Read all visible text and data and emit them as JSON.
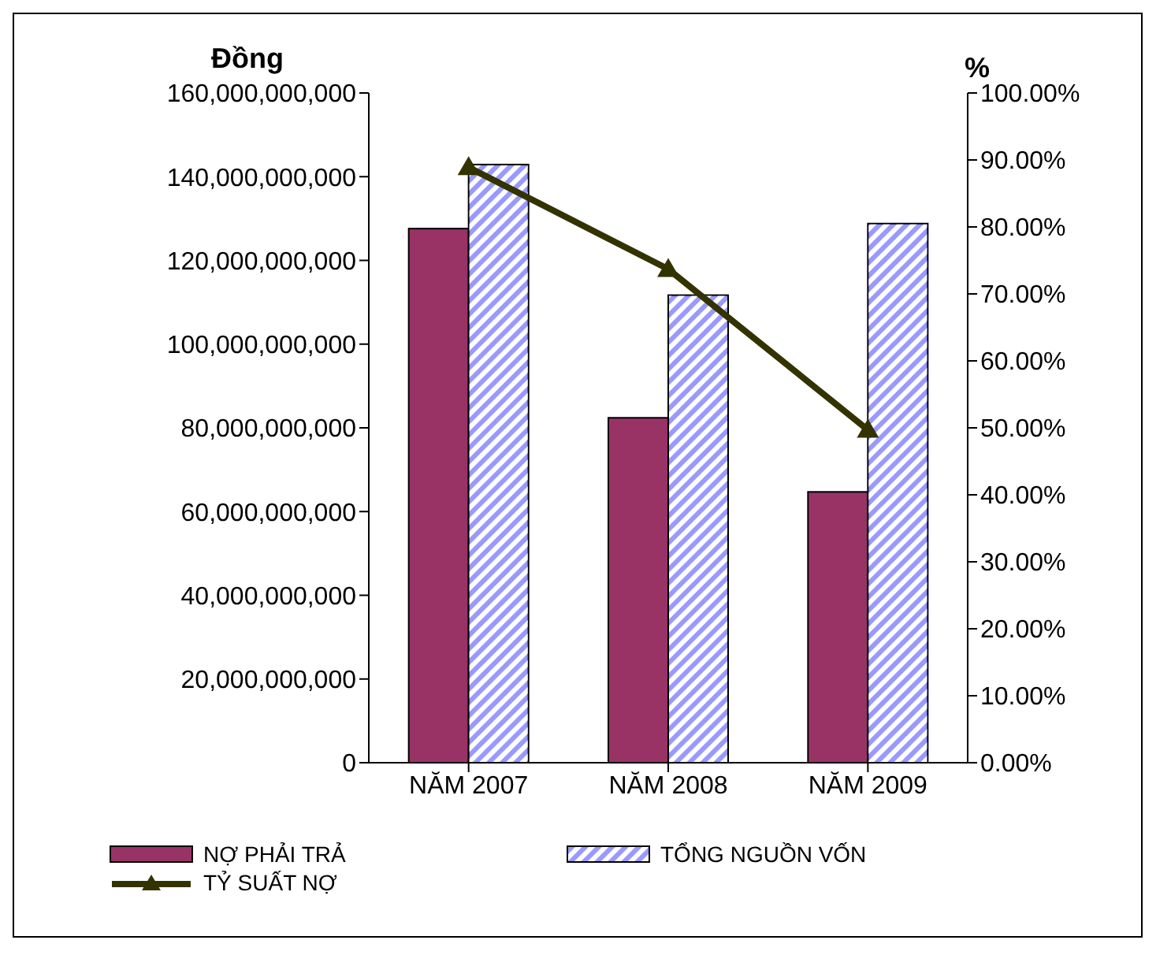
{
  "chart_data": {
    "type": "bar",
    "categories": [
      "NĂM 2007",
      "NĂM 2008",
      "NĂM 2009"
    ],
    "ylabel": "Đồng",
    "y2label": "%",
    "series": [
      {
        "name": "NỢ PHẢI TRẢ",
        "color": "#993366",
        "values": [
          127600000000,
          82400000000,
          64700000000
        ]
      },
      {
        "name": "TỔNG NGUỒN VỐN",
        "color": "#9999ff",
        "values": [
          142900000000,
          111700000000,
          128800000000
        ]
      },
      {
        "name": "TỶ SUẤT NỢ",
        "type": "line",
        "axis": "y2",
        "color": "#333300",
        "marker": "triangle",
        "values": [
          88.9,
          73.7,
          49.7
        ]
      }
    ],
    "ylim": [
      0,
      160000000000
    ],
    "yticks": [
      0,
      {
        "value": 20000000000,
        "label": "20,000,000,000"
      },
      {
        "value": 40000000000,
        "label": "40,000,000,000"
      },
      {
        "value": 60000000000,
        "label": "60,000,000,000"
      },
      {
        "value": 80000000000,
        "label": "80,000,000,000"
      },
      {
        "value": 100000000000,
        "label": "100,000,000,000"
      },
      {
        "value": 120000000000,
        "label": "120,000,000,000"
      },
      {
        "value": 140000000000,
        "label": "140,000,000,000"
      },
      {
        "value": 160000000000,
        "label": "160,000,000,000"
      }
    ],
    "y2lim": [
      0,
      100
    ],
    "y2ticks": [
      {
        "value": 0,
        "label": "0.00%"
      },
      {
        "value": 10,
        "label": "10.00%"
      },
      {
        "value": 20,
        "label": "20.00%"
      },
      {
        "value": 30,
        "label": "30.00%"
      },
      {
        "value": 40,
        "label": "40.00%"
      },
      {
        "value": 50,
        "label": "50.00%"
      },
      {
        "value": 60,
        "label": "60.00%"
      },
      {
        "value": 70,
        "label": "70.00%"
      },
      {
        "value": 80,
        "label": "80.00%"
      },
      {
        "value": 90,
        "label": "90.00%"
      },
      {
        "value": 100,
        "label": "100.00%"
      }
    ],
    "legend": "bottom"
  }
}
